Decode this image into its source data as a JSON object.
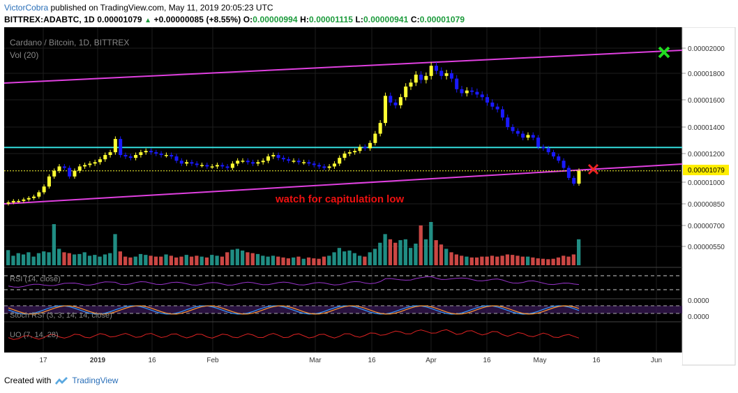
{
  "header": {
    "author": "VictorCobra",
    "published_text": "published on TradingView.com, May 11, 2019 20:05:23 UTC",
    "symbol_line": "BITTREX:ADABTC, 1D",
    "last": "0.00001079",
    "change": "+0.00000085 (+8.55%)",
    "o_label": "O:",
    "o_value": "0.00000994",
    "h_label": "H:",
    "h_value": "0.00001115",
    "l_label": "L:",
    "l_value": "0.00000941",
    "c_label": "C:",
    "c_value": "0.00001079"
  },
  "chart_data": {
    "type": "candlestick",
    "title": "Cardano / Bitcoin, 1D, BITTREX",
    "volume_label": "Vol (20)",
    "annotation": "watch for capitulation low",
    "price_tag": "0.00001079",
    "y_ticks": [
      "0.00002000",
      "0.00001800",
      "0.00001600",
      "0.00001400",
      "0.00001200",
      "0.00001000",
      "0.00000850",
      "0.00000700",
      "0.00000550"
    ],
    "x_ticks": [
      "17",
      "2019",
      "16",
      "Feb",
      "Mar",
      "16",
      "Apr",
      "16",
      "May",
      "16",
      "Jun"
    ],
    "indicators": [
      {
        "label": "RSI (14, close)"
      },
      {
        "label": "Stoch RSI (3, 3, 14, 14, close)",
        "tick": "0.0000"
      },
      {
        "label": "UO (7, 14, 28)",
        "tick": "0.0000"
      }
    ],
    "horizontal_level": 1.22e-05,
    "last_close": 1.079e-05,
    "colors": {
      "up": "#ffff33",
      "down": "#1a1aff",
      "channel": "#e040e0",
      "level": "#33dddd",
      "vol_up": "#26a69a",
      "vol_down": "#ef5350"
    },
    "closes": [
      8.6e-06,
      8.7e-06,
      8.7e-06,
      8.8e-06,
      8.9e-06,
      9e-06,
      9.3e-06,
      9.7e-06,
      1.04e-05,
      1.08e-05,
      1.11e-05,
      1.1e-05,
      1.04e-05,
      1.08e-05,
      1.11e-05,
      1.12e-05,
      1.13e-05,
      1.14e-05,
      1.16e-05,
      1.19e-05,
      1.21e-05,
      1.31e-05,
      1.19e-05,
      1.18e-05,
      1.17e-05,
      1.19e-05,
      1.21e-05,
      1.22e-05,
      1.21e-05,
      1.2e-05,
      1.19e-05,
      1.19e-05,
      1.18e-05,
      1.15e-05,
      1.13e-05,
      1.14e-05,
      1.13e-05,
      1.12e-05,
      1.12e-05,
      1.11e-05,
      1.11e-05,
      1.12e-05,
      1.11e-05,
      1.1e-05,
      1.13e-05,
      1.15e-05,
      1.15e-05,
      1.14e-05,
      1.13e-05,
      1.14e-05,
      1.15e-05,
      1.18e-05,
      1.19e-05,
      1.17e-05,
      1.16e-05,
      1.15e-05,
      1.15e-05,
      1.14e-05,
      1.14e-05,
      1.13e-05,
      1.12e-05,
      1.11e-05,
      1.1e-05,
      1.11e-05,
      1.13e-05,
      1.17e-05,
      1.2e-05,
      1.21e-05,
      1.22e-05,
      1.25e-05,
      1.24e-05,
      1.28e-05,
      1.35e-05,
      1.43e-05,
      1.63e-05,
      1.58e-05,
      1.56e-05,
      1.62e-05,
      1.7e-05,
      1.73e-05,
      1.79e-05,
      1.75e-05,
      1.78e-05,
      1.86e-05,
      1.82e-05,
      1.78e-05,
      1.8e-05,
      1.76e-05,
      1.68e-05,
      1.65e-05,
      1.67e-05,
      1.66e-05,
      1.64e-05,
      1.62e-05,
      1.58e-05,
      1.55e-05,
      1.53e-05,
      1.47e-05,
      1.4e-05,
      1.37e-05,
      1.35e-05,
      1.32e-05,
      1.34e-05,
      1.32e-05,
      1.25e-05,
      1.24e-05,
      1.21e-05,
      1.18e-05,
      1.15e-05,
      1.1e-05,
      1.03e-05,
      9.9e-06,
      1.08e-05
    ],
    "volumes": [
      0.35,
      0.22,
      0.28,
      0.25,
      0.3,
      0.2,
      0.28,
      0.32,
      0.3,
      0.95,
      0.38,
      0.3,
      0.28,
      0.25,
      0.26,
      0.3,
      0.22,
      0.24,
      0.2,
      0.25,
      0.28,
      0.72,
      0.32,
      0.2,
      0.18,
      0.2,
      0.26,
      0.24,
      0.22,
      0.2,
      0.2,
      0.25,
      0.22,
      0.18,
      0.2,
      0.24,
      0.2,
      0.22,
      0.2,
      0.18,
      0.24,
      0.22,
      0.2,
      0.3,
      0.36,
      0.38,
      0.34,
      0.3,
      0.28,
      0.26,
      0.22,
      0.2,
      0.22,
      0.2,
      0.18,
      0.16,
      0.18,
      0.2,
      0.15,
      0.18,
      0.16,
      0.15,
      0.2,
      0.22,
      0.3,
      0.4,
      0.32,
      0.34,
      0.28,
      0.22,
      0.2,
      0.3,
      0.38,
      0.52,
      0.72,
      0.6,
      0.52,
      0.58,
      0.6,
      0.4,
      0.5,
      0.92,
      0.6,
      1.0,
      0.58,
      0.48,
      0.38,
      0.3,
      0.25,
      0.22,
      0.2,
      0.18,
      0.18,
      0.2,
      0.2,
      0.22,
      0.2,
      0.22,
      0.25,
      0.24,
      0.22,
      0.2,
      0.2,
      0.18,
      0.16,
      0.15,
      0.14,
      0.15,
      0.18,
      0.22,
      0.2,
      0.25,
      0.6
    ]
  },
  "footer": {
    "created_with": "Created with",
    "brand": "TradingView"
  }
}
